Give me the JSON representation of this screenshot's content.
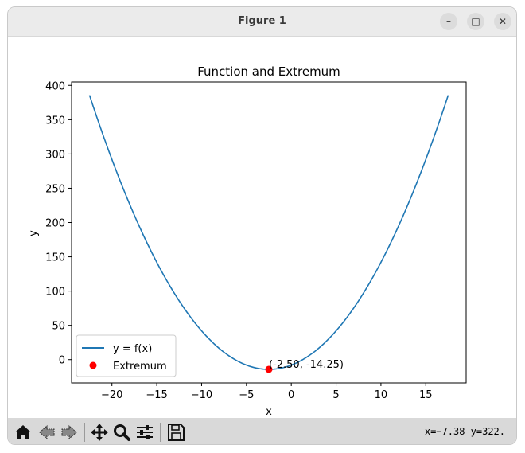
{
  "window": {
    "title": "Figure 1"
  },
  "titlebar_controls": [
    "–",
    "□",
    "✕"
  ],
  "toolbar": {
    "buttons": [
      "home-icon",
      "back-icon",
      "forward-icon",
      "pan-icon",
      "zoom-icon",
      "configure-subplots-icon",
      "save-icon"
    ],
    "coordinates": "x=−7.38 y=322."
  },
  "chart_data": {
    "type": "line",
    "title": "Function and Extremum",
    "xlabel": "x",
    "ylabel": "y",
    "xlim": [
      -24.5,
      19.5
    ],
    "ylim": [
      -34,
      405
    ],
    "xticks": [
      -20,
      -15,
      -10,
      -5,
      0,
      5,
      10,
      15
    ],
    "yticks": [
      0,
      50,
      100,
      150,
      200,
      250,
      300,
      350,
      400
    ],
    "series": [
      {
        "name": "y = f(x)",
        "function": "x^2 + 5x - 8",
        "x_range": [
          -22.5,
          17.5
        ],
        "color": "#1f77b4"
      }
    ],
    "extremum": {
      "name": "Extremum",
      "x": -2.5,
      "y": -14.25,
      "label": "(-2.50, -14.25)",
      "color": "#ff0000"
    },
    "legend": {
      "placement": "lower-left",
      "entries": [
        "y = f(x)",
        "Extremum"
      ]
    }
  }
}
